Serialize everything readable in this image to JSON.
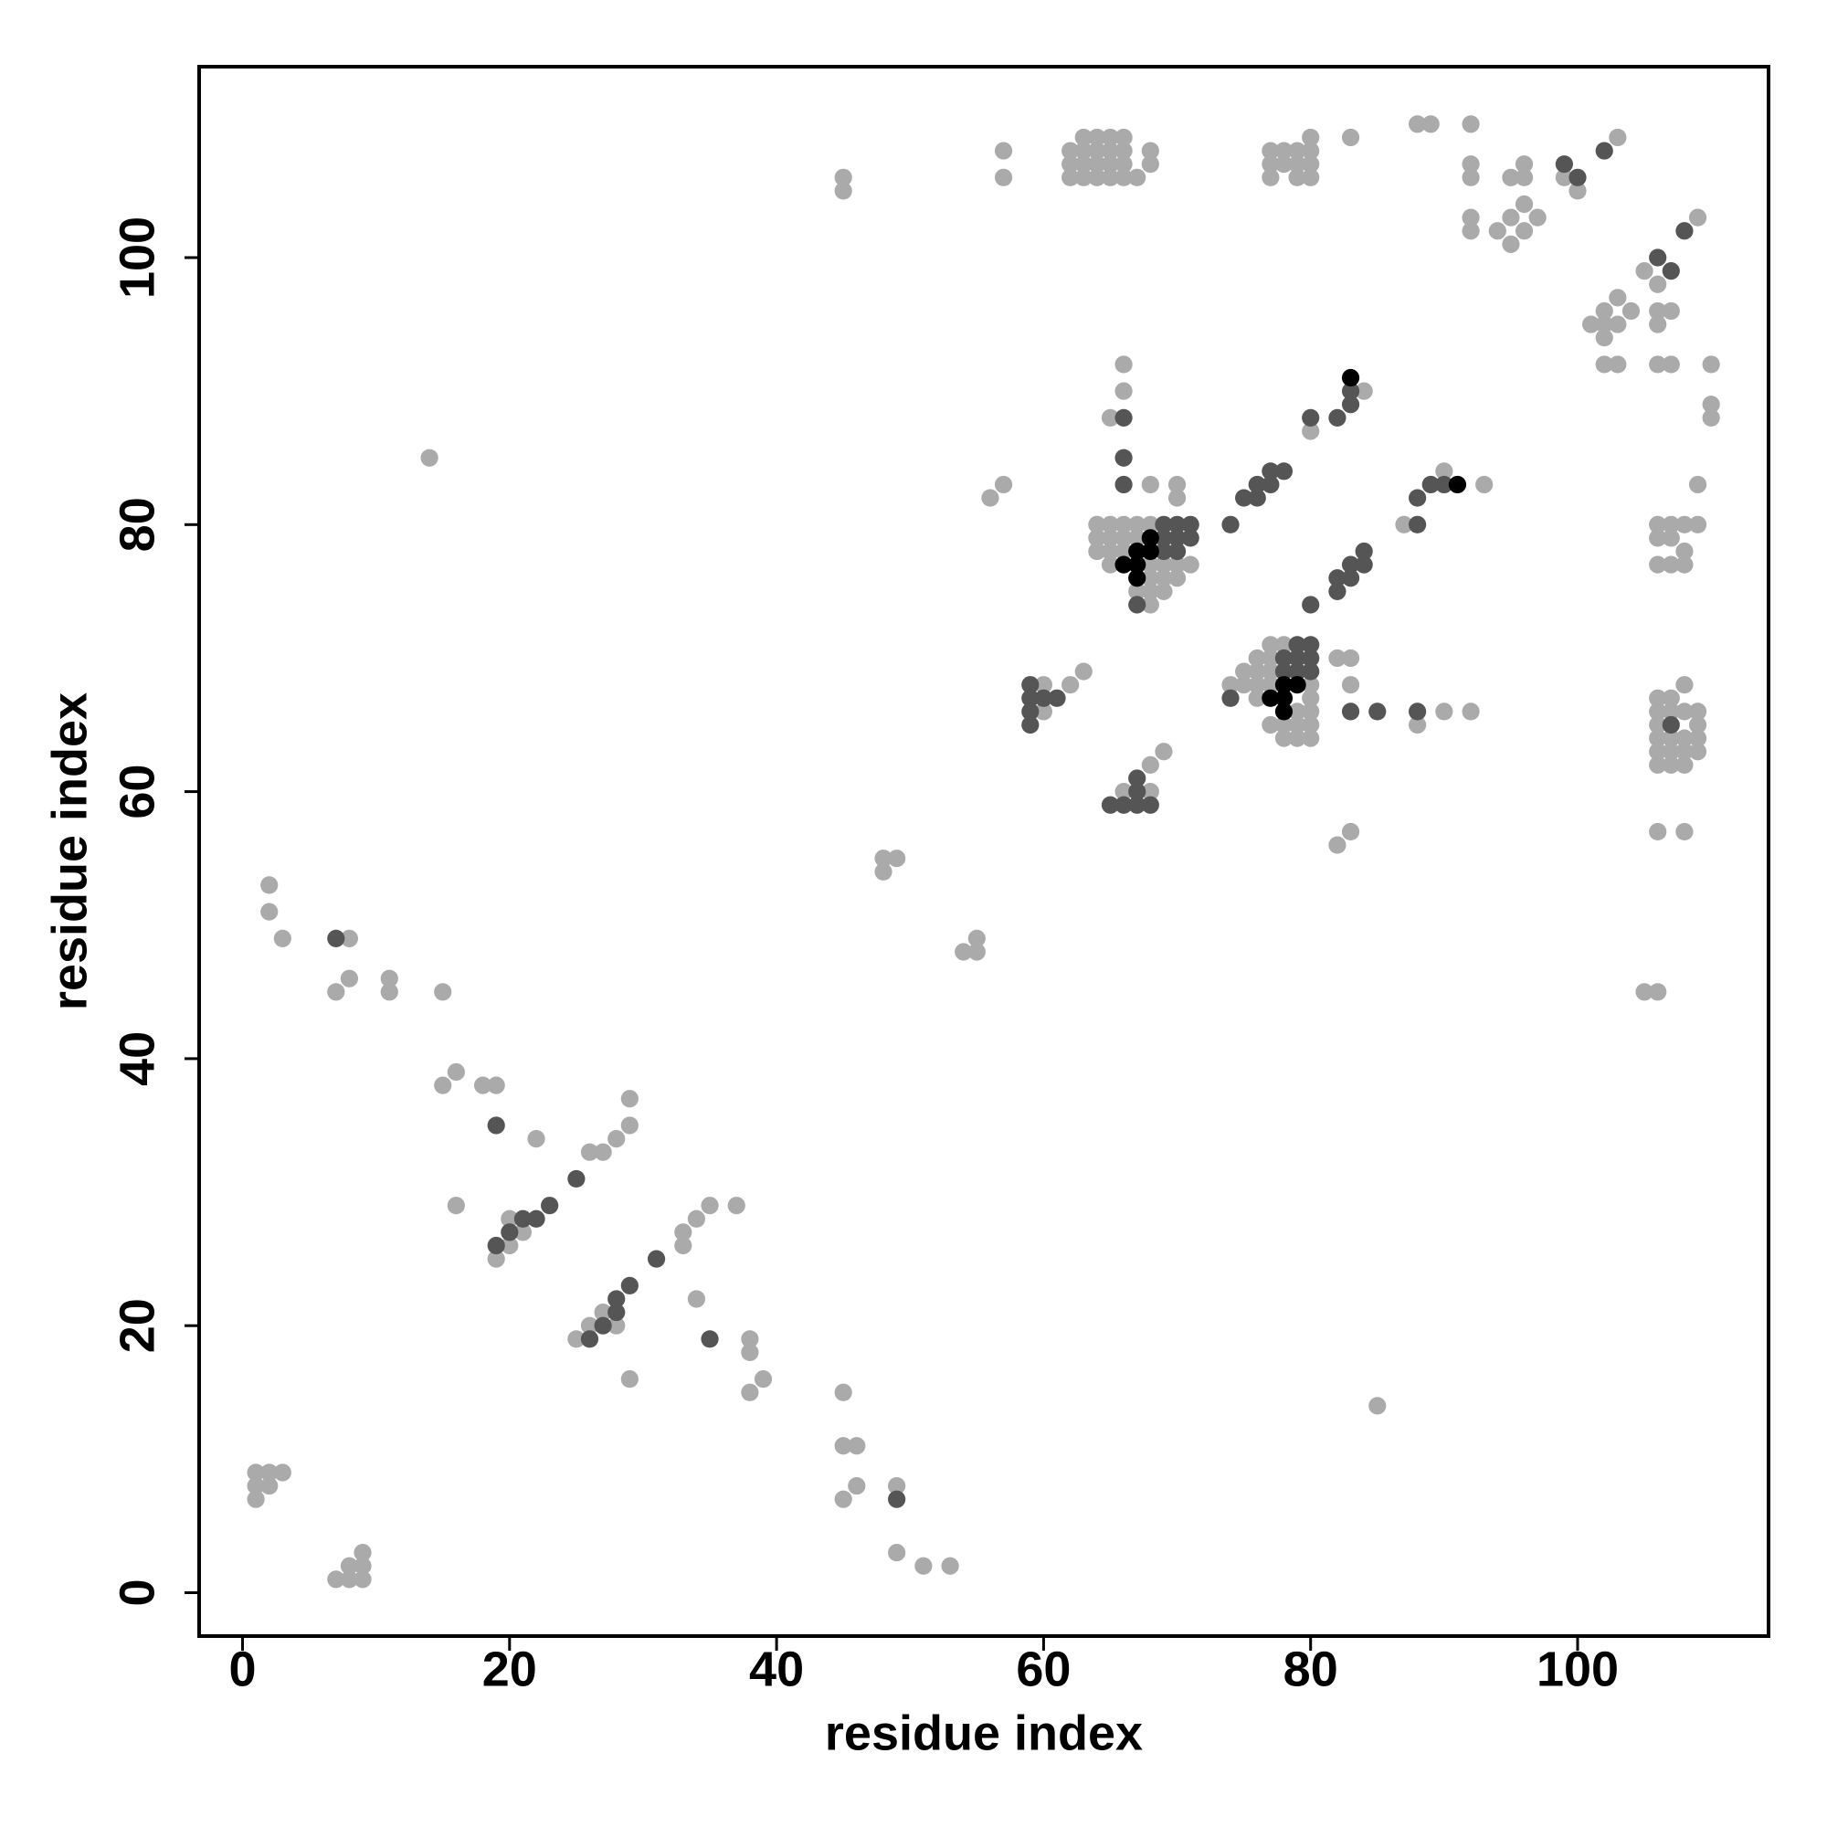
{
  "chart_data": {
    "type": "scatter",
    "xlabel": "residue index",
    "ylabel": "residue index",
    "xlim": [
      -3.25,
      114.3
    ],
    "ylim": [
      -3.25,
      114.3
    ],
    "xticks": [
      0,
      20,
      40,
      60,
      80,
      100
    ],
    "yticks": [
      0,
      20,
      40,
      60,
      80,
      100
    ],
    "series": [
      {
        "color": "#aaaaaa",
        "x": [
          1,
          2,
          3,
          1,
          2,
          1,
          7,
          8,
          9,
          8,
          9,
          9,
          2,
          2,
          3,
          8,
          7,
          8,
          11,
          11,
          14,
          15,
          15,
          16,
          18,
          19,
          16,
          22,
          19,
          20,
          21,
          20,
          26,
          27,
          28,
          29,
          29,
          25,
          26,
          27,
          28,
          29,
          33,
          33,
          34,
          35,
          37,
          34,
          38,
          38,
          38,
          39,
          45,
          45,
          46,
          45,
          46,
          49,
          49,
          51,
          53,
          48,
          49,
          48,
          54,
          55,
          55,
          45,
          45,
          57,
          57,
          56,
          57,
          60,
          60,
          62,
          63,
          66,
          68,
          68,
          69,
          66,
          66,
          65,
          68,
          70,
          70,
          82,
          83,
          83,
          88,
          90,
          92,
          82,
          83,
          85,
          84,
          80,
          87,
          90,
          93,
          105,
          106,
          106,
          108,
          62,
          62,
          62,
          63,
          63,
          63,
          64,
          64,
          64,
          64,
          65,
          65,
          65,
          66,
          66,
          66,
          66,
          67,
          68,
          68,
          63,
          65,
          77,
          77,
          77,
          78,
          78,
          79,
          79,
          79,
          80,
          80,
          80,
          80,
          83,
          88,
          89,
          92,
          92,
          92,
          92,
          92,
          94,
          95,
          95,
          95,
          96,
          96,
          96,
          96,
          97,
          99,
          100,
          103,
          102,
          102,
          102,
          101,
          103,
          103,
          104,
          105,
          106,
          106,
          106,
          107,
          102,
          103,
          106,
          107,
          110,
          110,
          110,
          109,
          109,
          109,
          106,
          106,
          106,
          107,
          107,
          108,
          108,
          108,
          107,
          64,
          64,
          64,
          65,
          65,
          65,
          65,
          66,
          66,
          66,
          67,
          67,
          67,
          68,
          68,
          68,
          68,
          68,
          69,
          69,
          69,
          70,
          70,
          71,
          74,
          75,
          75,
          76,
          76,
          76,
          77,
          77,
          77,
          77,
          78,
          78,
          78,
          79,
          79,
          79,
          80,
          80,
          80,
          80,
          80,
          76,
          77,
          106,
          106,
          106,
          106,
          106,
          106,
          107,
          107,
          107,
          107,
          107,
          108,
          108,
          108,
          108,
          108,
          109,
          109,
          109,
          109
        ],
        "values": [
          9,
          9,
          9,
          8,
          8,
          7,
          1,
          1,
          1,
          2,
          2,
          3,
          53,
          51,
          49,
          49,
          45,
          46,
          46,
          45,
          85,
          45,
          38,
          39,
          38,
          38,
          29,
          34,
          25,
          28,
          27,
          26,
          33,
          33,
          34,
          35,
          37,
          19,
          20,
          21,
          20,
          16,
          26,
          27,
          28,
          29,
          29,
          22,
          19,
          18,
          15,
          16,
          15,
          11,
          11,
          7,
          8,
          8,
          3,
          2,
          2,
          55,
          55,
          54,
          48,
          48,
          49,
          106,
          105,
          108,
          106,
          82,
          83,
          68,
          66,
          68,
          69,
          60,
          60,
          62,
          63,
          92,
          90,
          88,
          83,
          83,
          82,
          70,
          70,
          68,
          65,
          66,
          66,
          56,
          57,
          14,
          90,
          87,
          80,
          84,
          83,
          45,
          45,
          57,
          57,
          108,
          107,
          106,
          109,
          108,
          107,
          109,
          108,
          107,
          106,
          109,
          108,
          107,
          109,
          108,
          107,
          106,
          106,
          108,
          107,
          106,
          106,
          108,
          107,
          106,
          108,
          107,
          108,
          107,
          106,
          109,
          108,
          107,
          106,
          109,
          110,
          110,
          110,
          107,
          106,
          103,
          102,
          102,
          103,
          101,
          106,
          107,
          106,
          104,
          102,
          103,
          106,
          105,
          109,
          96,
          95,
          94,
          95,
          97,
          95,
          96,
          99,
          98,
          96,
          95,
          96,
          92,
          92,
          92,
          92,
          92,
          89,
          88,
          103,
          83,
          80,
          80,
          79,
          77,
          80,
          79,
          80,
          78,
          77,
          77,
          80,
          79,
          78,
          80,
          79,
          78,
          77,
          80,
          79,
          78,
          80,
          79,
          75,
          80,
          77,
          76,
          75,
          74,
          77,
          76,
          75,
          77,
          76,
          77,
          68,
          69,
          68,
          70,
          69,
          68,
          71,
          70,
          69,
          65,
          71,
          65,
          64,
          66,
          65,
          64,
          68,
          67,
          66,
          65,
          64,
          67,
          68,
          67,
          66,
          65,
          64,
          63,
          62,
          67,
          66,
          64,
          63,
          62,
          68,
          66,
          64,
          63,
          62,
          66,
          65,
          64,
          63
        ]
      },
      {
        "color": "#555555",
        "x": [
          7,
          19,
          19,
          20,
          21,
          22,
          23,
          25,
          26,
          27,
          28,
          28,
          29,
          31,
          35,
          49,
          59,
          59,
          59,
          59,
          60,
          61,
          65,
          66,
          67,
          68,
          67,
          67,
          66,
          66,
          66,
          67,
          69,
          69,
          69,
          70,
          70,
          70,
          71,
          71,
          74,
          75,
          76,
          76,
          77,
          77,
          78,
          80,
          82,
          83,
          83,
          80,
          82,
          82,
          83,
          83,
          84,
          84,
          88,
          88,
          89,
          90,
          74,
          78,
          78,
          79,
          79,
          79,
          80,
          80,
          80,
          83,
          85,
          88,
          99,
          100,
          102,
          106,
          107,
          108,
          107
        ],
        "values": [
          49,
          35,
          26,
          27,
          28,
          28,
          29,
          31,
          19,
          20,
          21,
          22,
          23,
          25,
          19,
          7,
          68,
          67,
          66,
          65,
          67,
          67,
          59,
          59,
          59,
          59,
          61,
          60,
          88,
          85,
          83,
          74,
          80,
          79,
          78,
          80,
          79,
          78,
          80,
          79,
          80,
          82,
          82,
          83,
          83,
          84,
          84,
          88,
          88,
          89,
          90,
          74,
          75,
          76,
          76,
          77,
          77,
          78,
          80,
          82,
          83,
          83,
          67,
          70,
          69,
          71,
          70,
          69,
          71,
          70,
          69,
          66,
          66,
          66,
          107,
          106,
          108,
          100,
          99,
          102,
          65
        ]
      },
      {
        "color": "#000000",
        "x": [
          66,
          67,
          67,
          67,
          68,
          68,
          77,
          78,
          78,
          79,
          78,
          83,
          91
        ],
        "values": [
          77,
          78,
          77,
          76,
          79,
          78,
          67,
          67,
          66,
          68,
          68,
          91,
          83
        ]
      }
    ]
  }
}
